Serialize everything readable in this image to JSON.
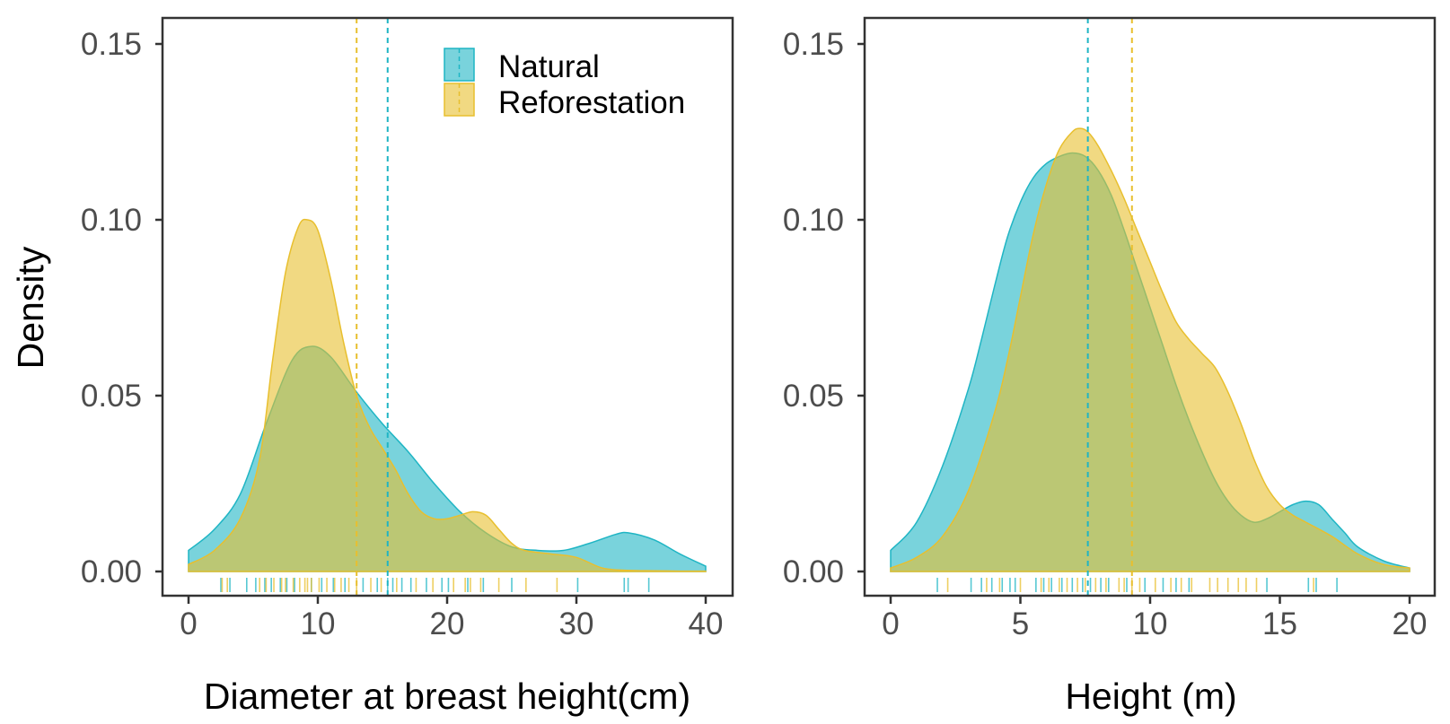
{
  "chart_data": [
    {
      "type": "area",
      "subtype": "density",
      "title": "",
      "xlabel": "Diameter at breast height(cm)",
      "ylabel": "Density",
      "xlim": [
        0,
        40
      ],
      "ylim": [
        0,
        0.15
      ],
      "xticks": [
        0,
        10,
        20,
        30,
        40
      ],
      "xtick_labels": [
        "0",
        "10",
        "20",
        "30",
        "40"
      ],
      "yticks": [
        0,
        0.05,
        0.1,
        0.15
      ],
      "ytick_labels": [
        "0.00",
        "0.05",
        "0.10",
        "0.15"
      ],
      "legend": {
        "position": "top-right",
        "entries": [
          "Natural",
          "Reforestation"
        ]
      },
      "series": [
        {
          "name": "Natural",
          "color": "#1fb5c4",
          "mean": 15.4,
          "x": [
            0,
            2,
            4,
            6,
            8,
            9.5,
            11,
            13,
            15,
            17,
            19,
            21,
            23,
            25,
            27,
            29,
            31,
            33,
            34,
            36,
            38,
            40
          ],
          "y": [
            0.006,
            0.012,
            0.022,
            0.042,
            0.06,
            0.064,
            0.061,
            0.051,
            0.042,
            0.034,
            0.025,
            0.017,
            0.011,
            0.007,
            0.006,
            0.006,
            0.008,
            0.0105,
            0.011,
            0.009,
            0.005,
            0.0015
          ]
        },
        {
          "name": "Reforestation",
          "color": "#e8bf2e",
          "mean": 13.0,
          "x": [
            0,
            2,
            4,
            5.5,
            6.5,
            7.5,
            8.5,
            9.2,
            10,
            11,
            12,
            13,
            14,
            15,
            16,
            17,
            18,
            19,
            20,
            21,
            22,
            23,
            24,
            25,
            26,
            28,
            30,
            32,
            34,
            36,
            38,
            40
          ],
          "y": [
            0.002,
            0.006,
            0.015,
            0.032,
            0.06,
            0.085,
            0.098,
            0.1,
            0.097,
            0.083,
            0.065,
            0.05,
            0.041,
            0.035,
            0.029,
            0.022,
            0.017,
            0.015,
            0.015,
            0.016,
            0.017,
            0.016,
            0.012,
            0.008,
            0.006,
            0.005,
            0.004,
            0.001,
            0.0003,
            0.0002,
            0.0001,
            0.0001
          ]
        }
      ],
      "rug": {
        "Natural": [
          2.5,
          3.2,
          4.5,
          5.2,
          5.9,
          6.4,
          7.1,
          7.6,
          8.2,
          9.5,
          10.3,
          11.2,
          12.1,
          13.5,
          14.6,
          15.4,
          15.8,
          16.5,
          17.2,
          18.4,
          19.6,
          20.1,
          21.6,
          22.8,
          25.0,
          30.1,
          33.7,
          34.0,
          35.6
        ],
        "Reforestation": [
          2.6,
          3.0,
          5.5,
          6.0,
          6.6,
          7.2,
          7.5,
          8.1,
          8.6,
          9.0,
          9.2,
          9.5,
          10.1,
          10.7,
          11.3,
          11.8,
          12.4,
          13.0,
          14.1,
          14.9,
          16.1,
          17.6,
          18.9,
          20.5,
          21.4,
          21.8,
          22.6,
          24.0,
          26.1,
          28.5
        ]
      }
    },
    {
      "type": "area",
      "subtype": "density",
      "title": "",
      "xlabel": "Height (m)",
      "ylabel": "",
      "xlim": [
        0,
        20
      ],
      "ylim": [
        0,
        0.15
      ],
      "xticks": [
        0,
        5,
        10,
        15,
        20
      ],
      "xtick_labels": [
        "0",
        "5",
        "10",
        "15",
        "20"
      ],
      "yticks": [
        0,
        0.05,
        0.1,
        0.15
      ],
      "ytick_labels": [
        "0.00",
        "0.05",
        "0.10",
        "0.15"
      ],
      "series": [
        {
          "name": "Natural",
          "color": "#1fb5c4",
          "mean": 7.6,
          "x": [
            0,
            1,
            2,
            3,
            3.5,
            4,
            4.5,
            5,
            5.5,
            6,
            6.5,
            7,
            7.5,
            8,
            8.5,
            9,
            9.5,
            10,
            10.5,
            11,
            11.5,
            12,
            12.5,
            13,
            13.5,
            14,
            14.5,
            15,
            15.5,
            16,
            16.5,
            17,
            17.5,
            18,
            19,
            20
          ],
          "y": [
            0.006,
            0.014,
            0.03,
            0.052,
            0.066,
            0.081,
            0.095,
            0.105,
            0.112,
            0.116,
            0.118,
            0.119,
            0.118,
            0.114,
            0.107,
            0.097,
            0.086,
            0.075,
            0.064,
            0.053,
            0.043,
            0.034,
            0.026,
            0.02,
            0.016,
            0.014,
            0.015,
            0.017,
            0.019,
            0.02,
            0.019,
            0.015,
            0.011,
            0.007,
            0.003,
            0.001
          ]
        },
        {
          "name": "Reforestation",
          "color": "#e8bf2e",
          "mean": 9.3,
          "x": [
            0,
            1,
            2,
            3,
            4,
            4.5,
            5,
            5.5,
            6,
            6.5,
            7,
            7.3,
            7.6,
            8,
            8.5,
            9,
            9.5,
            10,
            10.5,
            11,
            11.5,
            12,
            12.5,
            13,
            13.5,
            14,
            14.5,
            15,
            15.5,
            16,
            17,
            18,
            19,
            20
          ],
          "y": [
            0.001,
            0.004,
            0.01,
            0.023,
            0.045,
            0.06,
            0.078,
            0.096,
            0.11,
            0.12,
            0.125,
            0.126,
            0.125,
            0.121,
            0.114,
            0.106,
            0.097,
            0.088,
            0.079,
            0.071,
            0.066,
            0.062,
            0.058,
            0.051,
            0.042,
            0.032,
            0.024,
            0.019,
            0.016,
            0.014,
            0.01,
            0.005,
            0.002,
            0.001
          ]
        }
      ],
      "rug": {
        "Natural": [
          1.8,
          3.1,
          3.5,
          3.9,
          4.3,
          4.6,
          4.8,
          5.6,
          5.9,
          6.2,
          6.6,
          7.0,
          7.4,
          7.7,
          8.1,
          8.4,
          9.1,
          9.8,
          10.5,
          11.0,
          11.5,
          14.5,
          16.1,
          16.4,
          17.2
        ],
        "Reforestation": [
          2.2,
          3.7,
          4.2,
          5.0,
          5.8,
          6.1,
          6.5,
          6.8,
          7.2,
          7.5,
          7.9,
          8.3,
          8.8,
          9.0,
          9.3,
          9.6,
          10.2,
          10.8,
          11.2,
          11.6,
          12.3,
          12.6,
          13.0,
          13.4,
          13.7,
          14.1,
          16.3
        ]
      }
    }
  ]
}
